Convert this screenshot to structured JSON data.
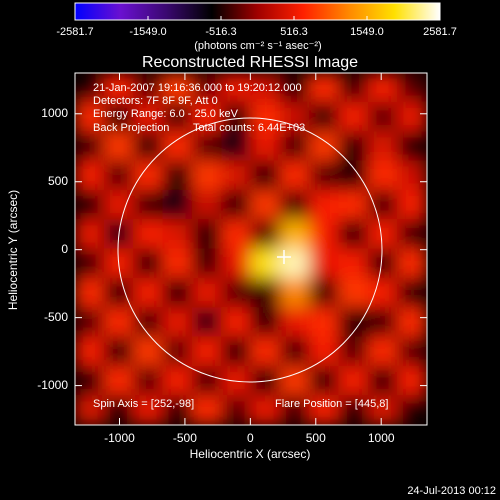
{
  "chart_data": {
    "type": "heatmap",
    "title": "Reconstructed RHESSI Image",
    "colorbar_label": "(photons cm⁻² s⁻¹ asec⁻²)",
    "xlabel": "Heliocentric X (arcsec)",
    "ylabel": "Heliocentric Y (arcsec)",
    "xlim": [
      -1340,
      1350
    ],
    "ylim": [
      -1290,
      1300
    ],
    "xticks": [
      -1000,
      -500,
      0,
      500,
      1000
    ],
    "yticks": [
      -1000,
      -500,
      0,
      500,
      1000
    ],
    "zlim": [
      -2581.7,
      2581.7
    ],
    "zticks": [
      -2581.7,
      {
        "value": -1549,
        "label": "-1549.0"
      },
      -516.3,
      516.3,
      {
        "value": 1549,
        "label": "1549.0"
      },
      2581.7
    ],
    "colormap": [
      "#0000ff",
      "#6a10d0",
      "#3a0870",
      "#000000",
      "#a00000",
      "#ff2000",
      "#ff8800",
      "#ffe000",
      "#ffffff"
    ],
    "z": [
      [
        -500,
        600,
        -300,
        800,
        -200,
        500,
        300,
        -600,
        700,
        -400,
        600,
        -300
      ],
      [
        700,
        -600,
        500,
        -400,
        600,
        -500,
        700,
        300,
        -500,
        600,
        -300,
        500
      ],
      [
        -400,
        800,
        -600,
        700,
        -300,
        -700,
        500,
        -400,
        800,
        -500,
        400,
        -600
      ],
      [
        600,
        -300,
        700,
        -500,
        800,
        400,
        -600,
        700,
        -300,
        -600,
        700,
        300
      ],
      [
        -600,
        500,
        -400,
        -700,
        300,
        -500,
        800,
        -400,
        600,
        700,
        -400,
        600
      ],
      [
        500,
        -700,
        600,
        400,
        -600,
        700,
        -300,
        1600,
        600,
        -500,
        600,
        -400
      ],
      [
        -400,
        600,
        -500,
        700,
        -400,
        500,
        2000,
        2400,
        500,
        600,
        -500,
        700
      ],
      [
        700,
        -500,
        600,
        -600,
        500,
        -300,
        -400,
        1300,
        -400,
        800,
        600,
        -500
      ],
      [
        -300,
        700,
        -400,
        500,
        -700,
        600,
        -500,
        500,
        700,
        -500,
        -400,
        700
      ],
      [
        600,
        -500,
        800,
        -300,
        600,
        -600,
        700,
        -400,
        600,
        -300,
        700,
        -300
      ],
      [
        -500,
        700,
        -300,
        600,
        -400,
        500,
        -600,
        800,
        -500,
        600,
        -500,
        600
      ],
      [
        400,
        -600,
        500,
        -500,
        700,
        -300,
        500,
        -400,
        600,
        -600,
        400,
        -500
      ]
    ],
    "annotations": [
      "21-Jan-2007 19:16:36.000 to 19:20:12.000",
      "Detectors: 7F 8F 9F, Att 0",
      "Energy Range: 6.0 - 25.0 keV",
      "Back Projection",
      "Total counts: 6.44E+03"
    ],
    "spin_axis": "Spin Axis = [252,-98]",
    "flare_position": "Flare Position = [445,8]",
    "footer": "24-Jul-2013 00:12"
  }
}
